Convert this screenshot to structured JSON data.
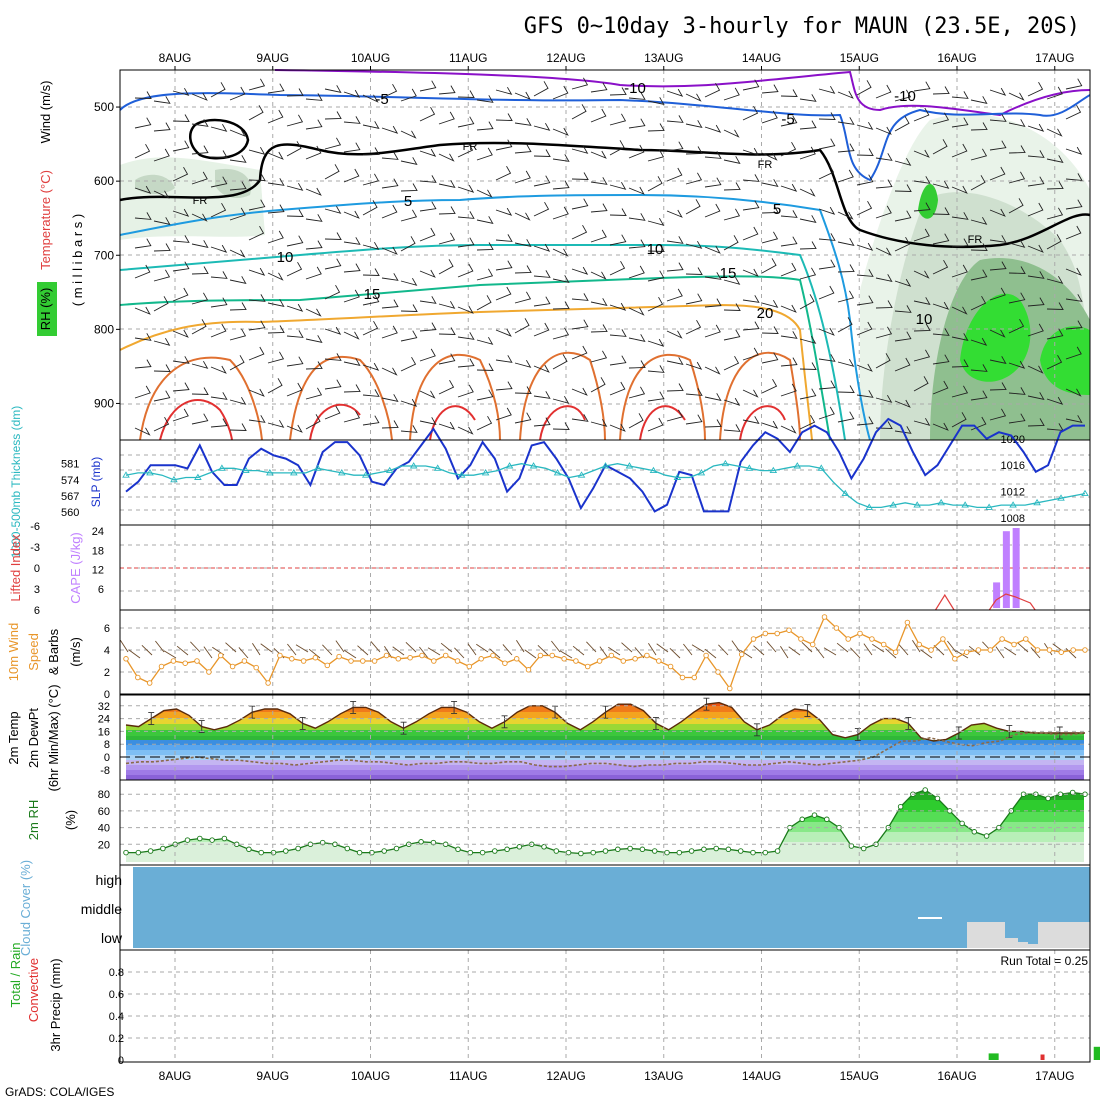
{
  "title": "GFS 0~10day 3-hourly for MAUN (23.5E, 20S)",
  "credit": "GrADS: COLA/IGES",
  "dates": [
    "8AUG",
    "9AUG",
    "10AUG",
    "11AUG",
    "12AUG",
    "13AUG",
    "14AUG",
    "15AUG",
    "16AUG",
    "17AUG"
  ],
  "colors": {
    "temp_contour": "#1f5fd8",
    "rh_green": "#2ecc2e",
    "thickness": "#2ab8c0",
    "slp": "#1a33cc",
    "cape": "#c080ff",
    "lifted": "#e04040",
    "wind": "#e8962a",
    "cloud": "#6aaed6",
    "precip_total": "#22bb22",
    "precip_conv": "#e03030"
  },
  "chart_data": [
    {
      "type": "heatmap",
      "panel": "upper-air",
      "ylabel_parts": [
        "RH (%)",
        "Temperature (°C)",
        "Wind (m/s)"
      ],
      "yaxis_title": "( m i l l i b a r s )",
      "y_ticks": [
        "500",
        "600",
        "700",
        "800",
        "900"
      ],
      "contour_labels": [
        "-10",
        "-5",
        "FR",
        "5",
        "10",
        "15",
        "20"
      ]
    },
    {
      "type": "line",
      "panel": "thickness-slp",
      "ylabel_left": "1000-500mb Thickness (dm)",
      "ylabel_right": "SLP (mb)",
      "left_ticks": [
        "581",
        "574",
        "567",
        "560"
      ],
      "right_ticks": [
        "1020",
        "1016",
        "1012",
        "1008"
      ],
      "series": [
        {
          "name": "SLP (mb)",
          "values": [
            1012,
            1013.5,
            1016,
            1016,
            1016,
            1015.5,
            1019,
            1015,
            1013,
            1013,
            1017,
            1018.5,
            1017.5,
            1017,
            1016,
            1013,
            1018,
            1019.5,
            1019.5,
            1017.5,
            1013.5,
            1013,
            1015.5,
            1016.5,
            1019,
            1021.5,
            1018.5,
            1014,
            1016,
            1019.5,
            1017,
            1012,
            1014,
            1019,
            1019.5,
            1017,
            1014,
            1009.5,
            1012.5,
            1016,
            1015,
            1014,
            1012,
            1009,
            1010,
            1015,
            1014.5,
            1009,
            1009,
            1009,
            1016.5,
            1019,
            1021,
            1020,
            1018,
            1021,
            1022,
            1021,
            1018,
            1014,
            1017,
            1021,
            1023,
            1022,
            1018,
            1014.5,
            1016,
            1019,
            1022,
            1022,
            1020,
            1021,
            1020.5,
            1018,
            1015,
            1016,
            1021,
            1022,
            1022
          ]
        },
        {
          "name": "1000-500mb Thickness (dm)",
          "values": [
            576,
            577,
            577,
            576,
            574,
            575,
            575,
            577,
            579,
            579,
            578,
            578,
            577,
            577,
            577,
            577,
            579,
            578,
            577,
            576,
            576,
            577,
            578,
            580,
            580,
            580,
            579,
            577,
            576,
            576,
            577,
            578,
            580,
            581,
            580,
            579,
            577,
            575,
            576,
            578,
            580,
            581,
            580,
            579,
            578,
            576,
            575,
            575,
            577,
            580,
            581,
            580,
            579,
            578,
            578,
            579,
            580,
            580,
            579,
            573,
            568,
            564,
            562,
            562,
            563,
            564,
            563,
            563,
            564,
            563,
            563,
            562,
            562,
            563,
            563,
            563,
            564,
            565,
            566,
            567,
            568
          ]
        }
      ]
    },
    {
      "type": "bar",
      "panel": "cape-lifted",
      "ylabel_left": "Lifted Index",
      "ylabel_right": "CAPE (J/kg)",
      "left_ticks": [
        "-6",
        "-3",
        "0",
        "3",
        "6"
      ],
      "right_ticks": [
        "24",
        "18",
        "12",
        "6"
      ],
      "series": [
        {
          "name": "CAPE (J/kg)",
          "x": [
            16.4,
            16.5,
            16.6
          ],
          "values": [
            8,
            24,
            25
          ]
        },
        {
          "name": "Lifted Index",
          "x": [
            15.875,
            16.35,
            16.5,
            16.65,
            16.75
          ],
          "values": [
            6.5,
            6,
            3.5,
            4,
            5
          ]
        }
      ]
    },
    {
      "type": "line",
      "panel": "10m-wind",
      "ylabel_parts": [
        "10m Wind",
        "Speed",
        "& Barbs",
        "(m/s)"
      ],
      "y_ticks": [
        "6",
        "4",
        "2",
        "0"
      ],
      "series": [
        {
          "name": "10m Wind Speed (m/s)",
          "values": [
            3.2,
            1.5,
            1,
            2.5,
            3,
            2.8,
            3,
            2,
            3.5,
            2.5,
            3,
            2.4,
            1,
            3.5,
            3.2,
            3,
            3.3,
            2.6,
            3.4,
            3,
            3,
            3,
            3.5,
            3.2,
            3.3,
            3.5,
            3,
            3.5,
            3,
            2.5,
            3.2,
            3.5,
            2.8,
            3.2,
            2.2,
            3.5,
            3.5,
            3.2,
            3,
            2.5,
            3,
            3.5,
            3,
            3.2,
            3.5,
            3,
            2.5,
            1.5,
            1.5,
            3.5,
            2,
            0.5,
            3.6,
            5,
            5.5,
            5.5,
            5.8,
            5,
            4.5,
            7,
            6,
            5,
            5.5,
            5,
            4.5,
            3.8,
            6.5,
            4.5,
            4,
            5,
            3.2,
            3.8,
            4,
            4,
            5,
            4.5,
            5,
            4,
            4,
            3.8,
            4,
            4
          ]
        }
      ]
    },
    {
      "type": "area",
      "panel": "2m-temp",
      "ylabel_parts": [
        "2m Temp",
        "2m DewPt",
        "(6hr Min/Max) (°C)"
      ],
      "y_ticks": [
        "32",
        "24",
        "16",
        "8",
        "0",
        "-8"
      ],
      "series": [
        {
          "name": "2m Temp (°C)",
          "values": [
            20,
            19,
            24,
            29,
            30,
            26,
            19,
            17,
            19,
            23,
            28,
            30,
            30,
            27,
            21,
            18,
            22,
            27,
            31,
            31,
            28,
            22,
            18,
            22,
            27,
            31,
            31,
            28,
            22,
            18,
            22,
            28,
            32,
            32,
            28,
            21,
            17,
            22,
            28,
            33,
            33,
            29,
            21,
            17,
            22,
            28,
            33,
            34,
            31,
            22,
            17,
            20,
            26,
            30,
            29,
            23,
            14,
            12,
            14,
            20,
            24,
            24,
            21,
            12,
            10,
            11,
            15,
            20,
            21,
            18,
            16,
            16,
            15,
            15,
            15,
            15,
            15
          ]
        },
        {
          "name": "2m DewPt (°C)",
          "values": [
            -4,
            -3,
            -3,
            -2,
            -1,
            0,
            -1,
            -2,
            -2,
            -3,
            -4,
            -4,
            -5,
            -4,
            -3,
            -2,
            -2,
            -3,
            -3,
            -4,
            -5,
            -4,
            -4,
            -3,
            -3,
            -4,
            -4,
            -3,
            -3,
            -5,
            -6,
            -6,
            -5,
            -4,
            -4,
            -5,
            -6,
            -5,
            -5,
            -4,
            -4,
            -3,
            -3,
            -4,
            -5,
            -5,
            -4,
            -3,
            -4,
            -5,
            -4,
            -3,
            -2,
            0,
            5,
            10,
            10,
            12,
            10,
            8,
            7,
            9,
            10,
            14,
            15,
            15,
            14,
            14,
            15
          ]
        }
      ]
    },
    {
      "type": "area",
      "panel": "2m-rh",
      "ylabel_parts": [
        "2m RH",
        "(%)"
      ],
      "y_ticks": [
        "80",
        "60",
        "40",
        "20"
      ],
      "series": [
        {
          "name": "2m RH (%)",
          "values": [
            10,
            10,
            12,
            15,
            20,
            25,
            27,
            25,
            27,
            20,
            14,
            10,
            10,
            12,
            15,
            20,
            22,
            20,
            15,
            10,
            10,
            12,
            15,
            20,
            23,
            22,
            20,
            14,
            10,
            10,
            12,
            14,
            17,
            20,
            17,
            12,
            10,
            9,
            10,
            12,
            14,
            15,
            14,
            12,
            10,
            10,
            12,
            14,
            15,
            14,
            12,
            10,
            10,
            12,
            40,
            50,
            55,
            50,
            40,
            18,
            15,
            20,
            40,
            65,
            80,
            85,
            75,
            60,
            45,
            35,
            30,
            40,
            60,
            80,
            80,
            75,
            80,
            82,
            80
          ]
        }
      ]
    },
    {
      "type": "heatmap",
      "panel": "cloud-cover",
      "ylabel": "Cloud Cover (%)",
      "levels": [
        "high",
        "middle",
        "low"
      ]
    },
    {
      "type": "bar",
      "panel": "3hr-precip",
      "ylabel_parts": [
        "Total / Rain",
        "Convective",
        "3hr Precip (mm)"
      ],
      "y_ticks": [
        "0.8",
        "0.6",
        "0.4",
        "0.2",
        "0"
      ],
      "run_total_label": "Run Total = 0.25",
      "series": [
        {
          "name": "Total / Rain",
          "x": [
            16.375,
            17.45
          ],
          "values": [
            0.06,
            0.12
          ]
        },
        {
          "name": "Convective",
          "x": [
            16.875
          ],
          "values": [
            0.05
          ]
        }
      ]
    }
  ]
}
